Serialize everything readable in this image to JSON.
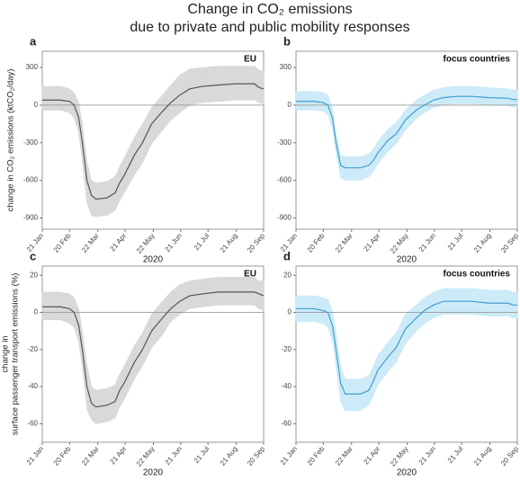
{
  "title_lines": [
    "Change in CO₂ emissions",
    "due to private and public mobility responses"
  ],
  "chart_data": [
    {
      "type": "line",
      "panel_label": "a",
      "annotation": "EU",
      "ylabel": [
        "change in CO₂ emissions (ktCO₂/day)"
      ],
      "xlabel": "2020",
      "x": [
        "2020-01-21",
        "2020-02-10",
        "2020-02-20",
        "2020-02-25",
        "2020-03-01",
        "2020-03-05",
        "2020-03-10",
        "2020-03-15",
        "2020-03-20",
        "2020-04-01",
        "2020-04-10",
        "2020-04-15",
        "2020-04-20",
        "2020-05-01",
        "2020-05-10",
        "2020-05-20",
        "2020-06-01",
        "2020-06-10",
        "2020-06-20",
        "2020-07-01",
        "2020-07-15",
        "2020-08-01",
        "2020-08-20",
        "2020-09-10",
        "2020-09-15",
        "2020-09-20"
      ],
      "values": [
        40,
        40,
        30,
        0,
        -100,
        -300,
        -600,
        -720,
        -750,
        -740,
        -700,
        -620,
        -560,
        -400,
        -300,
        -150,
        -50,
        20,
        80,
        130,
        150,
        160,
        170,
        170,
        140,
        130
      ],
      "lower": [
        -40,
        -40,
        -60,
        -100,
        -220,
        -450,
        -780,
        -880,
        -890,
        -880,
        -840,
        -760,
        -700,
        -560,
        -460,
        -310,
        -200,
        -120,
        -60,
        0,
        20,
        30,
        40,
        40,
        20,
        10
      ],
      "upper": [
        150,
        150,
        130,
        100,
        20,
        -150,
        -450,
        -600,
        -620,
        -610,
        -570,
        -490,
        -420,
        -260,
        -150,
        -20,
        80,
        160,
        240,
        290,
        300,
        310,
        310,
        310,
        280,
        270
      ],
      "color": "#555555",
      "band_color": "#d9d9d9",
      "xlim": [
        "2020-01-21",
        "2020-09-20"
      ],
      "xticks": [
        {
          "value": "2020-01-21",
          "label": "21 Jan"
        },
        {
          "value": "2020-02-20",
          "label": "20 Feb"
        },
        {
          "value": "2020-03-22",
          "label": "22 Mar"
        },
        {
          "value": "2020-04-21",
          "label": "21 Apr"
        },
        {
          "value": "2020-05-22",
          "label": "22 May"
        },
        {
          "value": "2020-06-21",
          "label": "21 Jun"
        },
        {
          "value": "2020-07-21",
          "label": "21 Jul"
        },
        {
          "value": "2020-08-21",
          "label": "21 Aug"
        },
        {
          "value": "2020-09-20",
          "label": "20 Sep"
        }
      ],
      "ylim": [
        -990,
        430
      ],
      "yticks": [
        -900,
        -600,
        -300,
        0,
        300
      ]
    },
    {
      "type": "line",
      "panel_label": "b",
      "annotation": "focus countries",
      "xlabel": "2020",
      "x": [
        "2020-01-21",
        "2020-02-10",
        "2020-02-20",
        "2020-02-25",
        "2020-03-01",
        "2020-03-05",
        "2020-03-10",
        "2020-03-15",
        "2020-03-20",
        "2020-04-01",
        "2020-04-10",
        "2020-04-15",
        "2020-04-20",
        "2020-05-01",
        "2020-05-10",
        "2020-05-20",
        "2020-06-01",
        "2020-06-10",
        "2020-06-20",
        "2020-07-01",
        "2020-07-15",
        "2020-08-01",
        "2020-08-20",
        "2020-09-10",
        "2020-09-15",
        "2020-09-20"
      ],
      "values": [
        30,
        30,
        20,
        0,
        -100,
        -300,
        -480,
        -500,
        -500,
        -500,
        -480,
        -440,
        -380,
        -280,
        -230,
        -120,
        -40,
        0,
        40,
        60,
        70,
        70,
        60,
        55,
        45,
        45
      ],
      "lower": [
        -40,
        -40,
        -50,
        -80,
        -180,
        -380,
        -580,
        -600,
        -600,
        -600,
        -570,
        -530,
        -470,
        -370,
        -310,
        -200,
        -110,
        -60,
        -20,
        0,
        10,
        10,
        0,
        -5,
        -15,
        -15
      ],
      "upper": [
        110,
        110,
        100,
        80,
        -20,
        -220,
        -400,
        -410,
        -410,
        -410,
        -390,
        -350,
        -290,
        -190,
        -140,
        -40,
        40,
        80,
        120,
        140,
        150,
        150,
        140,
        130,
        120,
        120
      ],
      "color": "#3f9fcf",
      "band_color": "#cdeaf8",
      "xlim": [
        "2020-01-21",
        "2020-09-20"
      ],
      "xticks": [
        {
          "value": "2020-01-21",
          "label": "21 Jan"
        },
        {
          "value": "2020-02-20",
          "label": "20 Feb"
        },
        {
          "value": "2020-03-22",
          "label": "22 Mar"
        },
        {
          "value": "2020-04-21",
          "label": "21 Apr"
        },
        {
          "value": "2020-05-22",
          "label": "22 May"
        },
        {
          "value": "2020-06-21",
          "label": "21 Jun"
        },
        {
          "value": "2020-07-21",
          "label": "21 Jul"
        },
        {
          "value": "2020-08-21",
          "label": "21 Aug"
        },
        {
          "value": "2020-09-20",
          "label": "20 Sep"
        }
      ],
      "ylim": [
        -990,
        430
      ],
      "yticks": [
        -900,
        -600,
        -300,
        0,
        300
      ]
    },
    {
      "type": "line",
      "panel_label": "c",
      "annotation": "EU",
      "ylabel": [
        "change in",
        "surface passenger transport emissions (%)"
      ],
      "xlabel": "2020",
      "x": [
        "2020-01-21",
        "2020-02-10",
        "2020-02-20",
        "2020-02-25",
        "2020-03-01",
        "2020-03-05",
        "2020-03-10",
        "2020-03-15",
        "2020-03-20",
        "2020-04-01",
        "2020-04-10",
        "2020-04-15",
        "2020-04-20",
        "2020-05-01",
        "2020-05-10",
        "2020-05-20",
        "2020-06-01",
        "2020-06-10",
        "2020-06-20",
        "2020-07-01",
        "2020-07-15",
        "2020-08-01",
        "2020-08-20",
        "2020-09-10",
        "2020-09-15",
        "2020-09-20"
      ],
      "values": [
        3,
        3,
        2,
        0,
        -7,
        -20,
        -40,
        -49,
        -51,
        -50,
        -48,
        -42,
        -38,
        -27,
        -20,
        -10,
        -3,
        2,
        6,
        9,
        10,
        11,
        11,
        11,
        10,
        9
      ],
      "lower": [
        -4,
        -4,
        -6,
        -8,
        -16,
        -30,
        -52,
        -58,
        -60,
        -59,
        -57,
        -51,
        -47,
        -36,
        -29,
        -19,
        -12,
        -5,
        -1,
        2,
        3,
        4,
        4,
        4,
        2,
        1
      ],
      "upper": [
        11,
        11,
        10,
        8,
        2,
        -10,
        -28,
        -40,
        -42,
        -41,
        -39,
        -33,
        -29,
        -18,
        -11,
        -1,
        6,
        11,
        15,
        17,
        18,
        19,
        19,
        19,
        17,
        17
      ],
      "color": "#555555",
      "band_color": "#d9d9d9",
      "xlim": [
        "2020-01-21",
        "2020-09-20"
      ],
      "xticks": [
        {
          "value": "2020-01-21",
          "label": "21 Jan"
        },
        {
          "value": "2020-02-20",
          "label": "20 Feb"
        },
        {
          "value": "2020-03-22",
          "label": "22 Mar"
        },
        {
          "value": "2020-04-21",
          "label": "21 Apr"
        },
        {
          "value": "2020-05-22",
          "label": "22 May"
        },
        {
          "value": "2020-06-21",
          "label": "21 Jun"
        },
        {
          "value": "2020-07-21",
          "label": "21 Jul"
        },
        {
          "value": "2020-08-21",
          "label": "21 Aug"
        },
        {
          "value": "2020-09-20",
          "label": "20 Sep"
        }
      ],
      "ylim": [
        -70,
        25
      ],
      "yticks": [
        -60,
        -40,
        -20,
        0,
        20
      ]
    },
    {
      "type": "line",
      "panel_label": "d",
      "annotation": "focus countries",
      "xlabel": "2020",
      "x": [
        "2020-01-21",
        "2020-02-10",
        "2020-02-20",
        "2020-02-25",
        "2020-03-01",
        "2020-03-05",
        "2020-03-10",
        "2020-03-15",
        "2020-03-20",
        "2020-04-01",
        "2020-04-10",
        "2020-04-15",
        "2020-04-20",
        "2020-05-01",
        "2020-05-10",
        "2020-05-20",
        "2020-06-01",
        "2020-06-10",
        "2020-06-20",
        "2020-07-01",
        "2020-07-15",
        "2020-08-01",
        "2020-08-20",
        "2020-09-10",
        "2020-09-15",
        "2020-09-20"
      ],
      "values": [
        2,
        2,
        1,
        0,
        -7,
        -20,
        -38,
        -44,
        -44,
        -44,
        -42,
        -37,
        -31,
        -24,
        -19,
        -9,
        -3,
        1,
        4,
        6,
        6,
        6,
        5,
        5,
        4,
        4
      ],
      "lower": [
        -5,
        -5,
        -6,
        -8,
        -15,
        -29,
        -48,
        -53,
        -53,
        -53,
        -50,
        -45,
        -39,
        -32,
        -27,
        -17,
        -10,
        -6,
        -3,
        -1,
        -1,
        -1,
        -2,
        -2,
        -3,
        -3
      ],
      "upper": [
        9,
        9,
        8,
        7,
        1,
        -11,
        -29,
        -36,
        -36,
        -36,
        -34,
        -29,
        -23,
        -16,
        -11,
        -1,
        4,
        8,
        11,
        13,
        13,
        13,
        12,
        12,
        11,
        11
      ],
      "color": "#3f9fcf",
      "band_color": "#cdeaf8",
      "xlim": [
        "2020-01-21",
        "2020-09-20"
      ],
      "xticks": [
        {
          "value": "2020-01-21",
          "label": "21 Jan"
        },
        {
          "value": "2020-02-20",
          "label": "20 Feb"
        },
        {
          "value": "2020-03-22",
          "label": "22 Mar"
        },
        {
          "value": "2020-04-21",
          "label": "21 Apr"
        },
        {
          "value": "2020-05-22",
          "label": "22 May"
        },
        {
          "value": "2020-06-21",
          "label": "21 Jun"
        },
        {
          "value": "2020-07-21",
          "label": "21 Jul"
        },
        {
          "value": "2020-08-21",
          "label": "21 Aug"
        },
        {
          "value": "2020-09-20",
          "label": "20 Sep"
        }
      ],
      "ylim": [
        -70,
        25
      ],
      "yticks": [
        -60,
        -40,
        -20,
        0,
        20
      ]
    }
  ]
}
